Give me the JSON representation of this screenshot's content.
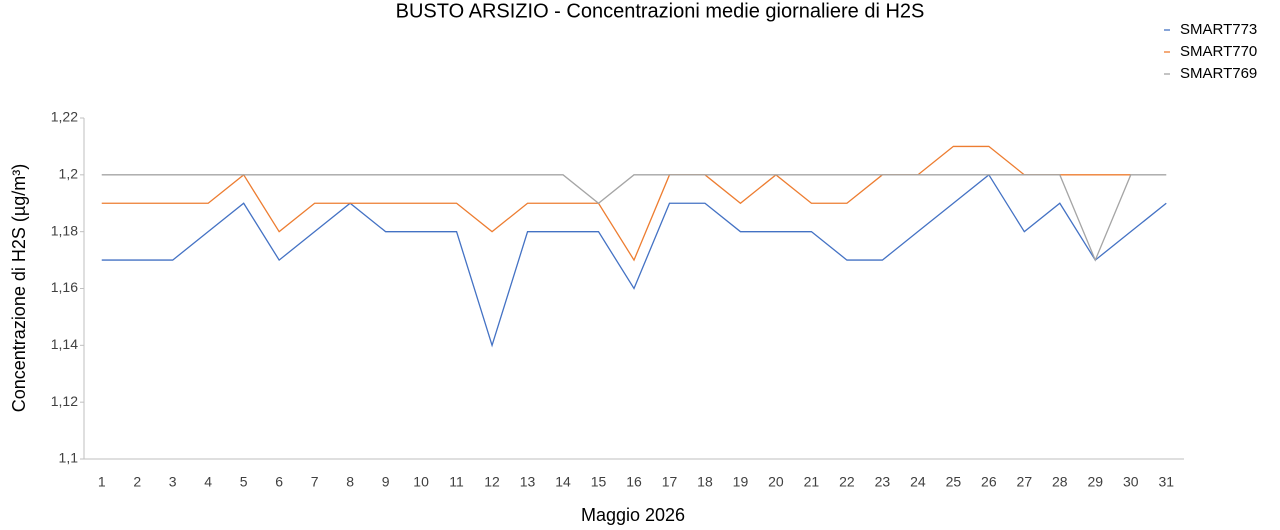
{
  "chart_data": {
    "type": "line",
    "title": "BUSTO ARSIZIO - Concentrazioni medie giornaliere di H2S",
    "x_label": "Maggio 2026",
    "y_label": "Concentrazione di H2S (µg/m³)",
    "categories": [
      "1",
      "2",
      "3",
      "4",
      "5",
      "6",
      "7",
      "8",
      "9",
      "10",
      "11",
      "12",
      "13",
      "14",
      "15",
      "16",
      "17",
      "18",
      "19",
      "20",
      "21",
      "22",
      "23",
      "24",
      "25",
      "26",
      "27",
      "28",
      "29",
      "30",
      "31"
    ],
    "series": [
      {
        "name": "SMART773",
        "color": "#4472c4",
        "values": [
          1.17,
          1.17,
          1.17,
          1.18,
          1.19,
          1.17,
          1.18,
          1.19,
          1.18,
          1.18,
          1.18,
          1.14,
          1.18,
          1.18,
          1.18,
          1.16,
          1.19,
          1.19,
          1.18,
          1.18,
          1.18,
          1.17,
          1.17,
          1.18,
          1.19,
          1.2,
          1.18,
          1.19,
          1.17,
          1.18,
          1.19
        ]
      },
      {
        "name": "SMART770",
        "color": "#ed7d31",
        "values": [
          1.19,
          1.19,
          1.19,
          1.19,
          1.2,
          1.18,
          1.19,
          1.19,
          1.19,
          1.19,
          1.19,
          1.18,
          1.19,
          1.19,
          1.19,
          1.17,
          1.2,
          1.2,
          1.19,
          1.2,
          1.19,
          1.19,
          1.2,
          1.2,
          1.21,
          1.21,
          1.2,
          1.2,
          1.2,
          1.2,
          null
        ]
      },
      {
        "name": "SMART769",
        "color": "#a5a5a5",
        "values": [
          1.2,
          1.2,
          1.2,
          1.2,
          1.2,
          1.2,
          1.2,
          1.2,
          1.2,
          1.2,
          1.2,
          1.2,
          1.2,
          1.2,
          1.19,
          1.2,
          1.2,
          1.2,
          1.2,
          1.2,
          1.2,
          1.2,
          1.2,
          1.2,
          1.2,
          1.2,
          1.2,
          1.2,
          1.17,
          1.2,
          1.2
        ]
      }
    ],
    "ylim": [
      1.1,
      1.22
    ],
    "yticks": [
      {
        "value": 1.1,
        "label": "1,1"
      },
      {
        "value": 1.12,
        "label": "1,12"
      },
      {
        "value": 1.14,
        "label": "1,14"
      },
      {
        "value": 1.16,
        "label": "1,16"
      },
      {
        "value": 1.18,
        "label": "1,18"
      },
      {
        "value": 1.2,
        "label": "1,2"
      },
      {
        "value": 1.22,
        "label": "1,22"
      }
    ],
    "grid": false,
    "legend": "top-right"
  }
}
